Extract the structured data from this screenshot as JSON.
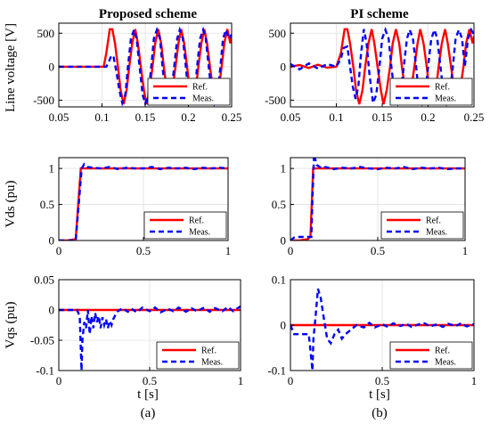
{
  "colors": {
    "ref": "#ff0000",
    "meas": "#0000ff",
    "axis": "#000000",
    "grid": "#e0e0e0"
  },
  "columns": [
    {
      "title": "Proposed scheme",
      "caption": "(a)"
    },
    {
      "title": "PI scheme",
      "caption": "(b)"
    }
  ],
  "row_ylabels": [
    "Line voltage [V]",
    "Vds (pu)",
    "Vqs (pu)"
  ],
  "xlabel": "t [s]",
  "legend": [
    "Ref.",
    "Meas."
  ],
  "chart_data": [
    {
      "type": "line",
      "panel": "top-left",
      "xlim": [
        0.05,
        0.25
      ],
      "ylim": [
        -600,
        650
      ],
      "xticks": [
        0.05,
        0.1,
        0.15,
        0.2,
        0.25
      ],
      "yticks": [
        500,
        0,
        -500
      ],
      "xticklabels": [
        "0.05",
        "0.1",
        "0.15",
        "0.2",
        "0.25"
      ],
      "yticklabels": [
        "500",
        "0",
        "-500"
      ],
      "grid": true,
      "legend_position": "lower-right",
      "series": [
        {
          "name": "Ref.",
          "color": "#ff0000",
          "dash": false,
          "x": [
            0.05,
            0.102,
            0.105,
            0.109,
            0.112,
            0.115,
            0.1185,
            0.1215,
            0.125,
            0.1285,
            0.1315,
            0.135,
            0.1385,
            0.1415,
            0.145,
            0.1485,
            0.1515,
            0.155,
            0.1585,
            0.1615,
            0.165,
            0.1685,
            0.1715,
            0.175,
            0.1785,
            0.1815,
            0.185,
            0.1885,
            0.1915,
            0.195,
            0.1985,
            0.2015,
            0.205,
            0.2085,
            0.2115,
            0.215,
            0.2185,
            0.2215,
            0.225,
            0.2285,
            0.2315,
            0.235,
            0.2385,
            0.2415,
            0.245,
            0.2485,
            0.25
          ],
          "y": [
            0,
            0,
            200,
            560,
            560,
            350,
            0,
            -350,
            -560,
            -350,
            0,
            350,
            560,
            350,
            0,
            -350,
            -560,
            -350,
            0,
            350,
            560,
            350,
            0,
            -350,
            -560,
            -350,
            0,
            350,
            560,
            350,
            0,
            -350,
            -560,
            -350,
            0,
            350,
            560,
            350,
            0,
            -350,
            -560,
            -350,
            0,
            350,
            560,
            350,
            450
          ]
        },
        {
          "name": "Meas.",
          "color": "#0000ff",
          "dash": true,
          "x": [
            0.05,
            0.105,
            0.108,
            0.111,
            0.1135,
            0.117,
            0.12,
            0.1235,
            0.127,
            0.13,
            0.1335,
            0.137,
            0.14,
            0.1435,
            0.147,
            0.15,
            0.1535,
            0.157,
            0.16,
            0.1635,
            0.167,
            0.17,
            0.1735,
            0.177,
            0.18,
            0.1835,
            0.187,
            0.19,
            0.1935,
            0.197,
            0.2,
            0.2035,
            0.207,
            0.21,
            0.2135,
            0.217,
            0.22,
            0.2235,
            0.227,
            0.23,
            0.2335,
            0.237,
            0.24,
            0.2435,
            0.247,
            0.25
          ],
          "y": [
            0,
            0,
            80,
            170,
            140,
            -100,
            -350,
            -540,
            -420,
            0,
            420,
            550,
            420,
            0,
            -420,
            -550,
            -420,
            0,
            420,
            550,
            420,
            0,
            -420,
            -550,
            -420,
            0,
            420,
            550,
            420,
            0,
            -420,
            -550,
            -420,
            0,
            420,
            550,
            420,
            0,
            -420,
            -550,
            -420,
            0,
            420,
            550,
            420,
            480
          ]
        }
      ]
    },
    {
      "type": "line",
      "panel": "top-right",
      "xlim": [
        0.05,
        0.25
      ],
      "ylim": [
        -600,
        650
      ],
      "xticks": [
        0.05,
        0.1,
        0.15,
        0.2,
        0.25
      ],
      "yticks": [
        500,
        0,
        -500
      ],
      "xticklabels": [
        "0.05",
        "0.1",
        "0.15",
        "0.2",
        "0.25"
      ],
      "yticklabels": [
        "500",
        "0",
        "-500"
      ],
      "grid": true,
      "legend_position": "lower-right",
      "series": [
        {
          "name": "Ref.",
          "color": "#ff0000",
          "dash": false,
          "x": [
            0.05,
            0.06,
            0.07,
            0.08,
            0.09,
            0.1,
            0.105,
            0.109,
            0.112,
            0.115,
            0.1185,
            0.1215,
            0.125,
            0.1285,
            0.1315,
            0.135,
            0.1385,
            0.1415,
            0.145,
            0.1485,
            0.1515,
            0.155,
            0.1585,
            0.1615,
            0.165,
            0.1685,
            0.1715,
            0.175,
            0.1785,
            0.1815,
            0.185,
            0.1885,
            0.1915,
            0.195,
            0.1985,
            0.2015,
            0.205,
            0.2085,
            0.2115,
            0.215,
            0.2185,
            0.2215,
            0.225,
            0.2285,
            0.2315,
            0.235,
            0.2385,
            0.2415,
            0.245,
            0.2485,
            0.25
          ],
          "y": [
            0,
            25,
            -20,
            30,
            -15,
            0,
            200,
            560,
            560,
            350,
            0,
            -350,
            -560,
            -350,
            0,
            350,
            560,
            350,
            0,
            -350,
            -560,
            -350,
            0,
            350,
            560,
            350,
            0,
            -350,
            -560,
            -350,
            0,
            350,
            560,
            350,
            0,
            -350,
            -560,
            -350,
            0,
            350,
            560,
            350,
            0,
            -350,
            -560,
            -350,
            0,
            350,
            560,
            350,
            450
          ]
        },
        {
          "name": "Meas.",
          "color": "#0000ff",
          "dash": true,
          "x": [
            0.05,
            0.06,
            0.07,
            0.08,
            0.09,
            0.1,
            0.105,
            0.108,
            0.112,
            0.115,
            0.118,
            0.121,
            0.124,
            0.127,
            0.13,
            0.133,
            0.136,
            0.14,
            0.1435,
            0.147,
            0.15,
            0.1535,
            0.157,
            0.16,
            0.1635,
            0.167,
            0.17,
            0.1735,
            0.177,
            0.18,
            0.1835,
            0.187,
            0.19,
            0.1935,
            0.197,
            0.2,
            0.2035,
            0.207,
            0.21,
            0.2135,
            0.217,
            0.22,
            0.2235,
            0.227,
            0.23,
            0.2335,
            0.237,
            0.24,
            0.2435,
            0.247,
            0.25
          ],
          "y": [
            40,
            -40,
            50,
            -30,
            40,
            0,
            120,
            280,
            300,
            0,
            -300,
            -480,
            -300,
            200,
            560,
            350,
            -100,
            -540,
            -420,
            0,
            420,
            550,
            420,
            0,
            -420,
            -550,
            -420,
            0,
            420,
            550,
            420,
            0,
            -420,
            -550,
            -420,
            0,
            420,
            550,
            420,
            0,
            -420,
            -550,
            -420,
            0,
            420,
            550,
            420,
            0,
            420,
            550,
            480
          ]
        }
      ]
    },
    {
      "type": "line",
      "panel": "middle-left",
      "xlim": [
        0,
        1
      ],
      "ylim": [
        0,
        1.15
      ],
      "xticks": [
        0,
        0.5,
        1
      ],
      "yticks": [
        1,
        0.5,
        0
      ],
      "xticklabels": [
        "0",
        "0.5",
        "1"
      ],
      "yticklabels": [
        "1",
        "0.5",
        "0"
      ],
      "grid": true,
      "legend_position": "lower-right",
      "series": [
        {
          "name": "Ref.",
          "color": "#ff0000",
          "dash": false,
          "x": [
            0,
            0.05,
            0.1,
            0.13,
            1
          ],
          "y": [
            0,
            0,
            0.02,
            1.0,
            1.0
          ]
        },
        {
          "name": "Meas.",
          "color": "#0000ff",
          "dash": true,
          "x": [
            0,
            0.05,
            0.1,
            0.135,
            0.15,
            0.17,
            0.2,
            0.25,
            0.3,
            0.35,
            0.4,
            0.45,
            0.5,
            0.55,
            0.6,
            0.65,
            0.7,
            0.75,
            0.8,
            0.85,
            0.9,
            0.95,
            1
          ],
          "y": [
            0,
            0,
            0,
            1.0,
            1.06,
            1.02,
            1.01,
            1.0,
            1.02,
            0.99,
            1.01,
            1.0,
            1.0,
            1.02,
            0.99,
            1.01,
            1.0,
            1.01,
            0.99,
            1.01,
            1.0,
            1.01,
            1.0
          ]
        }
      ]
    },
    {
      "type": "line",
      "panel": "middle-right",
      "xlim": [
        0,
        1
      ],
      "ylim": [
        0,
        1.15
      ],
      "xticks": [
        0,
        0.5,
        1
      ],
      "yticks": [
        1,
        0.5,
        0
      ],
      "xticklabels": [
        "0",
        "0.5",
        "1"
      ],
      "yticklabels": [
        "1",
        "0.5",
        "0"
      ],
      "grid": true,
      "legend_position": "lower-right",
      "series": [
        {
          "name": "Ref.",
          "color": "#ff0000",
          "dash": false,
          "x": [
            0,
            0.05,
            0.1,
            0.115,
            0.13,
            1
          ],
          "y": [
            0,
            0,
            0.02,
            0.06,
            1.0,
            1.0
          ]
        },
        {
          "name": "Meas.",
          "color": "#0000ff",
          "dash": true,
          "x": [
            0,
            0.02,
            0.05,
            0.1,
            0.12,
            0.125,
            0.135,
            0.15,
            0.18,
            0.2,
            0.25,
            0.3,
            0.35,
            0.4,
            0.45,
            0.5,
            0.55,
            0.6,
            0.65,
            0.7,
            0.75,
            0.8,
            0.85,
            0.9,
            0.95,
            1
          ],
          "y": [
            0,
            0.04,
            0.05,
            0.05,
            0.05,
            0.5,
            1.2,
            1.05,
            1.0,
            1.02,
            0.99,
            1.01,
            1.0,
            1.02,
            1.0,
            0.99,
            1.01,
            1.0,
            1.02,
            0.99,
            1.01,
            1.0,
            1.01,
            0.99,
            1.0,
            1.0
          ]
        }
      ]
    },
    {
      "type": "line",
      "panel": "bottom-left",
      "xlim": [
        0,
        1
      ],
      "ylim": [
        -0.1,
        0.05
      ],
      "xticks": [
        0,
        0.5,
        1
      ],
      "yticks": [
        0.05,
        0,
        -0.05,
        -0.1
      ],
      "xticklabels": [
        "0",
        "0.5",
        "1"
      ],
      "yticklabels": [
        "0.05",
        "0",
        "-0.05",
        "-0.1"
      ],
      "grid": true,
      "legend_position": "lower-right",
      "series": [
        {
          "name": "Ref.",
          "color": "#ff0000",
          "dash": false,
          "x": [
            0,
            1
          ],
          "y": [
            0,
            0
          ]
        },
        {
          "name": "Meas.",
          "color": "#0000ff",
          "dash": true,
          "x": [
            0,
            0.1,
            0.115,
            0.125,
            0.13,
            0.14,
            0.15,
            0.16,
            0.17,
            0.18,
            0.19,
            0.2,
            0.21,
            0.22,
            0.23,
            0.24,
            0.25,
            0.26,
            0.27,
            0.28,
            0.29,
            0.3,
            0.32,
            0.35,
            0.38,
            0.4,
            0.43,
            0.46,
            0.5,
            0.53,
            0.56,
            0.6,
            0.63,
            0.66,
            0.7,
            0.73,
            0.76,
            0.8,
            0.83,
            0.86,
            0.9,
            0.93,
            0.96,
            1
          ],
          "y": [
            0,
            0,
            -0.01,
            -0.1,
            -0.05,
            -0.02,
            -0.03,
            0.0,
            -0.04,
            -0.01,
            -0.03,
            -0.005,
            -0.02,
            -0.01,
            -0.03,
            -0.012,
            -0.025,
            -0.015,
            -0.03,
            -0.018,
            -0.025,
            -0.015,
            -0.003,
            0.003,
            -0.003,
            0.002,
            -0.004,
            0.004,
            -0.002,
            0.004,
            -0.004,
            0.002,
            -0.002,
            0.004,
            -0.003,
            0.003,
            -0.002,
            0.004,
            -0.003,
            0.003,
            -0.002,
            0.005,
            -0.002,
            0.006
          ]
        }
      ]
    },
    {
      "type": "line",
      "panel": "bottom-right",
      "xlim": [
        0,
        1
      ],
      "ylim": [
        -0.1,
        0.1
      ],
      "xticks": [
        0,
        0.5,
        1
      ],
      "yticks": [
        0.1,
        0,
        -0.1
      ],
      "xticklabels": [
        "0",
        "0.5",
        "1"
      ],
      "yticklabels": [
        "0.1",
        "0",
        "-0.1"
      ],
      "grid": true,
      "legend_position": "lower-right",
      "series": [
        {
          "name": "Ref.",
          "color": "#ff0000",
          "dash": false,
          "x": [
            0,
            1
          ],
          "y": [
            0,
            0
          ]
        },
        {
          "name": "Meas.",
          "color": "#0000ff",
          "dash": true,
          "x": [
            0,
            0.02,
            0.05,
            0.08,
            0.1,
            0.12,
            0.125,
            0.135,
            0.15,
            0.165,
            0.18,
            0.2,
            0.22,
            0.24,
            0.26,
            0.28,
            0.3,
            0.33,
            0.36,
            0.4,
            0.43,
            0.46,
            0.5,
            0.53,
            0.56,
            0.6,
            0.63,
            0.66,
            0.7,
            0.73,
            0.76,
            0.8,
            0.83,
            0.86,
            0.9,
            0.93,
            0.96,
            1
          ],
          "y": [
            0,
            -0.02,
            -0.02,
            -0.02,
            -0.02,
            -0.1,
            -0.03,
            0.01,
            0.08,
            0.06,
            0.02,
            -0.03,
            -0.04,
            -0.02,
            -0.01,
            -0.03,
            -0.02,
            -0.01,
            0.0,
            -0.005,
            0.005,
            -0.005,
            0.002,
            -0.004,
            0.004,
            -0.002,
            0.003,
            -0.004,
            0.002,
            0.004,
            -0.003,
            0.002,
            -0.004,
            0.003,
            -0.002,
            0.004,
            -0.003,
            0.002
          ]
        }
      ]
    }
  ]
}
